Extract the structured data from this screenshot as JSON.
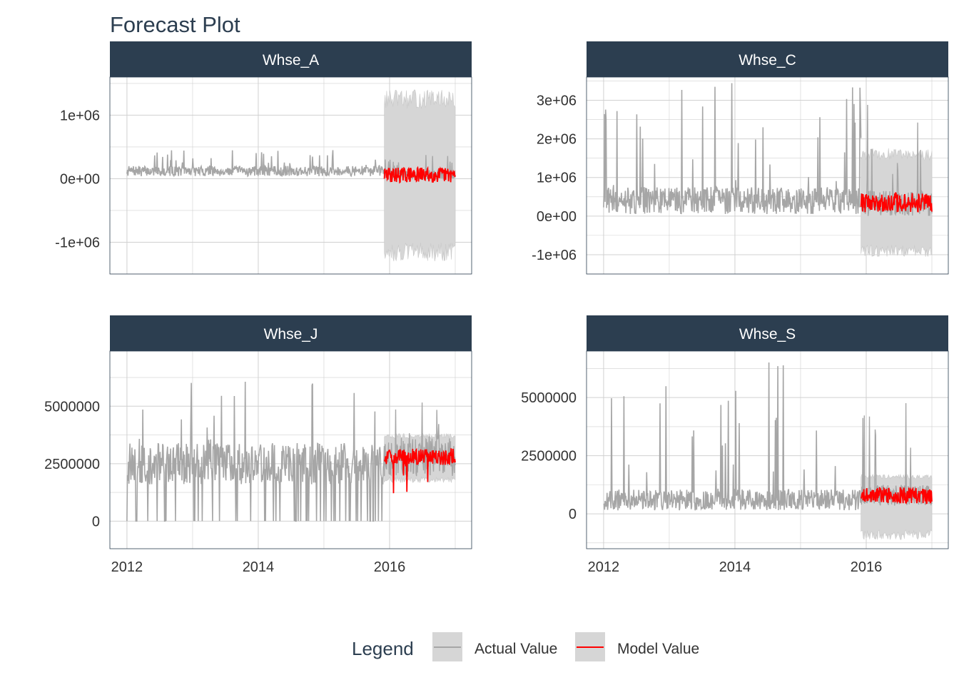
{
  "title": "Forecast Plot",
  "legend": {
    "title": "Legend",
    "placement": "bottom",
    "items": [
      {
        "label": "Actual Value",
        "color": "#a6a6a6"
      },
      {
        "label": "Model Value",
        "color": "#ff0000"
      }
    ]
  },
  "colors": {
    "strip": "#2c3e50",
    "actual": "#a6a6a6",
    "model": "#ff0000",
    "ribbon": "#d6d6d6",
    "grid": "#d0d0d0"
  },
  "chart_data": [
    {
      "type": "line",
      "facet": "Whse_A",
      "x_ticks": [
        "2012",
        "2014",
        "2016"
      ],
      "y_ticks": [
        {
          "value": 1000000,
          "label": "1e+06"
        },
        {
          "value": 0,
          "label": "0e+00"
        },
        {
          "value": -1000000,
          "label": "-1e+06"
        }
      ],
      "ylim": [
        -1500000,
        1600000
      ],
      "actual": {
        "start": 2012.0,
        "end": 2015.92,
        "level": 120000,
        "spread": 80000,
        "spike_max": 450000
      },
      "forecast": {
        "start": 2015.92,
        "end": 2017.0,
        "level": 60000,
        "spread": 120000,
        "ribbon_upper": 1250000,
        "ribbon_lower": -1150000
      },
      "series": [
        {
          "name": "Actual Value"
        },
        {
          "name": "Model Value"
        }
      ]
    },
    {
      "type": "line",
      "facet": "Whse_C",
      "x_ticks": [
        "2012",
        "2014",
        "2016"
      ],
      "y_ticks": [
        {
          "value": 3000000,
          "label": "3e+06"
        },
        {
          "value": 2000000,
          "label": "2e+06"
        },
        {
          "value": 1000000,
          "label": "1e+06"
        },
        {
          "value": 0,
          "label": "0e+00"
        },
        {
          "value": -1000000,
          "label": "-1e+06"
        }
      ],
      "ylim": [
        -1500000,
        3600000
      ],
      "actual": {
        "start": 2012.0,
        "end": 2015.92,
        "level": 400000,
        "spread": 350000,
        "spike_max": 3500000
      },
      "forecast": {
        "start": 2015.92,
        "end": 2017.0,
        "level": 350000,
        "spread": 250000,
        "ribbon_upper": 1600000,
        "ribbon_lower": -900000
      },
      "series": [
        {
          "name": "Actual Value"
        },
        {
          "name": "Model Value"
        }
      ]
    },
    {
      "type": "line",
      "facet": "Whse_J",
      "x_ticks": [
        "2012",
        "2014",
        "2016"
      ],
      "y_ticks": [
        {
          "value": 5000000,
          "label": "5000000"
        },
        {
          "value": 2500000,
          "label": "2500000"
        },
        {
          "value": 0,
          "label": "0"
        }
      ],
      "ylim": [
        -1200000,
        7400000
      ],
      "actual": {
        "start": 2012.0,
        "end": 2015.92,
        "level": 2500000,
        "spread": 900000,
        "spike_max": 6100000
      },
      "forecast": {
        "start": 2015.92,
        "end": 2017.0,
        "level": 2800000,
        "spread": 350000,
        "ribbon_upper": 3700000,
        "ribbon_lower": 1800000
      },
      "series": [
        {
          "name": "Actual Value"
        },
        {
          "name": "Model Value"
        }
      ]
    },
    {
      "type": "line",
      "facet": "Whse_S",
      "x_ticks": [
        "2012",
        "2014",
        "2016"
      ],
      "y_ticks": [
        {
          "value": 5000000,
          "label": "5000000"
        },
        {
          "value": 2500000,
          "label": "2500000"
        },
        {
          "value": 0,
          "label": "0"
        }
      ],
      "ylim": [
        -1500000,
        7000000
      ],
      "actual": {
        "start": 2012.0,
        "end": 2015.92,
        "level": 600000,
        "spread": 450000,
        "spike_max": 6600000
      },
      "forecast": {
        "start": 2015.92,
        "end": 2017.0,
        "level": 800000,
        "spread": 350000,
        "ribbon_upper": 1600000,
        "ribbon_lower": -900000
      },
      "series": [
        {
          "name": "Actual Value"
        },
        {
          "name": "Model Value"
        }
      ]
    }
  ]
}
